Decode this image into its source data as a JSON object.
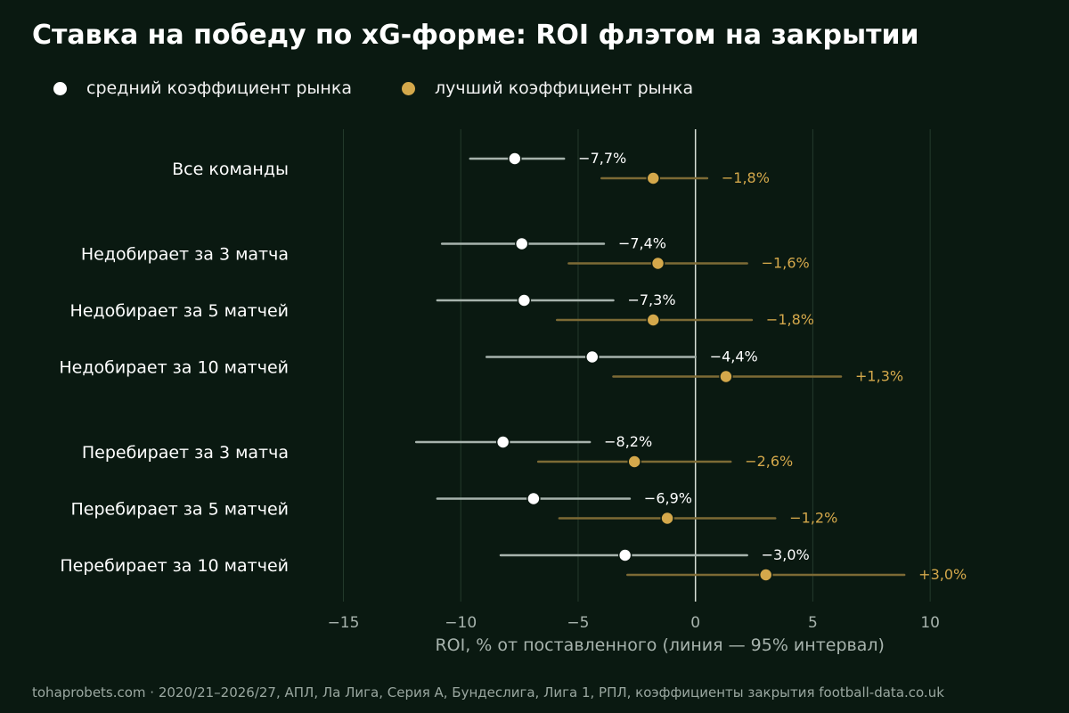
{
  "title": "Ставка на победу по xG-форме: ROI флэтом на закрытии",
  "legend": {
    "avg_label": "средний коэффициент рынка",
    "best_label": "лучший коэффициент рынка"
  },
  "footer": "tohaprobets.com · 2020/21–2026/27, АПЛ, Ла Лига, Серия А, Бундеслига, Лига 1, РПЛ, коэффициенты закрытия football-data.co.uk",
  "colors": {
    "background": "#0a1911",
    "avg": "#ffffff",
    "avg_ci": "#a7b3ad",
    "best": "#d4a84b",
    "best_ci": "#7d6a35",
    "grid": "#243a2c",
    "zero_line": "#d8e0d8",
    "axis_text": "#a7b3ad"
  },
  "chart_data": {
    "type": "scatter",
    "subtype": "dot-and-interval",
    "xlabel": "ROI, % от поставленного (линия — 95% интервал)",
    "xlim": [
      -16.5,
      12.5
    ],
    "xticks": [
      -15,
      -10,
      -5,
      0,
      5,
      10
    ],
    "xtick_labels": [
      "−15",
      "−10",
      "−5",
      "0",
      "5",
      "10"
    ],
    "grid": "vertical",
    "legend_position": "top-left",
    "series": [
      {
        "name": "средний коэффициент рынка",
        "key": "avg"
      },
      {
        "name": "лучший коэффициент рынка",
        "key": "best"
      }
    ],
    "categories": [
      {
        "label": "Все команды",
        "group": 0,
        "avg": {
          "value": -7.7,
          "ci": [
            -9.6,
            -5.6
          ],
          "text": "−7,7%"
        },
        "best": {
          "value": -1.8,
          "ci": [
            -4.0,
            0.5
          ],
          "text": "−1,8%"
        }
      },
      {
        "label": "Недобирает за 3 матча",
        "group": 1,
        "avg": {
          "value": -7.4,
          "ci": [
            -10.8,
            -3.9
          ],
          "text": "−7,4%"
        },
        "best": {
          "value": -1.6,
          "ci": [
            -5.4,
            2.2
          ],
          "text": "−1,6%"
        }
      },
      {
        "label": "Недобирает за 5 матчей",
        "group": 1,
        "avg": {
          "value": -7.3,
          "ci": [
            -11.0,
            -3.5
          ],
          "text": "−7,3%"
        },
        "best": {
          "value": -1.8,
          "ci": [
            -5.9,
            2.4
          ],
          "text": "−1,8%"
        }
      },
      {
        "label": "Недобирает за 10 матчей",
        "group": 1,
        "avg": {
          "value": -4.4,
          "ci": [
            -8.9,
            0.0
          ],
          "text": "−4,4%"
        },
        "best": {
          "value": 1.3,
          "ci": [
            -3.5,
            6.2
          ],
          "text": "+1,3%"
        }
      },
      {
        "label": "Перебирает за 3 матча",
        "group": 2,
        "avg": {
          "value": -8.2,
          "ci": [
            -11.9,
            -4.5
          ],
          "text": "−8,2%"
        },
        "best": {
          "value": -2.6,
          "ci": [
            -6.7,
            1.5
          ],
          "text": "−2,6%"
        }
      },
      {
        "label": "Перебирает за 5 матчей",
        "group": 2,
        "avg": {
          "value": -6.9,
          "ci": [
            -11.0,
            -2.8
          ],
          "text": "−6,9%"
        },
        "best": {
          "value": -1.2,
          "ci": [
            -5.8,
            3.4
          ],
          "text": "−1,2%"
        }
      },
      {
        "label": "Перебирает за 10 матчей",
        "group": 2,
        "avg": {
          "value": -3.0,
          "ci": [
            -8.3,
            2.2
          ],
          "text": "−3,0%"
        },
        "best": {
          "value": 3.0,
          "ci": [
            -2.9,
            8.9
          ],
          "text": "+3,0%"
        }
      }
    ]
  }
}
